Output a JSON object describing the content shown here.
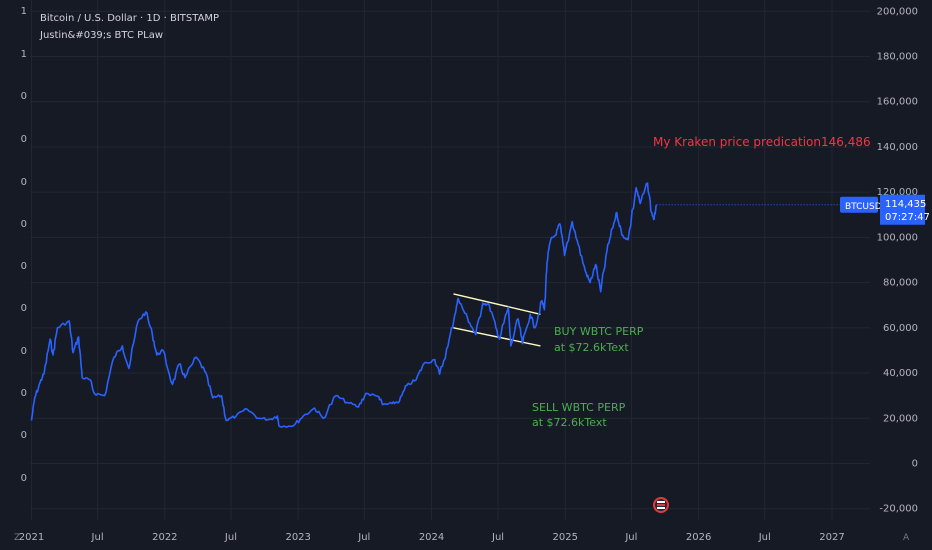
{
  "header": {
    "symbol_title": "Bitcoin / U.S. Dollar · 1D · BITSTAMP",
    "indicator_title": "Justin&#039;s BTC PLaw"
  },
  "price_tag": {
    "symbol": "BTCUSD",
    "price": "114,435",
    "countdown": "07:27:47"
  },
  "annotations": {
    "kraken": "My Kraken price predication146,486",
    "buy_line1": "BUY WBTC PERP",
    "buy_line2": "at $72.6kText",
    "sell_line1": "SELL WBTC PERP",
    "sell_line2": "at $72.6kText"
  },
  "left_axis_labels": [
    "1",
    "1",
    "0",
    "0",
    "0",
    "0",
    "0",
    "0",
    "0",
    "0",
    "0",
    "0"
  ],
  "corner_labels": {
    "left": "Z",
    "right": "A"
  },
  "colors": {
    "background": "#161a25",
    "series": "#2962ff",
    "kraken_text": "#f23645",
    "buy_sell_text": "#4caf50",
    "channel": "#fff9c4",
    "price_tag": "#2962ff"
  },
  "chart_data": {
    "type": "line",
    "title": "Bitcoin / U.S. Dollar · 1D · BITSTAMP",
    "x_tick_labels": [
      "2021",
      "Jul",
      "2022",
      "Jul",
      "2023",
      "Jul",
      "2024",
      "Jul",
      "2025",
      "Jul",
      "2026",
      "Jul",
      "2027"
    ],
    "y_tick_labels": [
      "200,000",
      "180,000",
      "160,000",
      "140,000",
      "120,000",
      "100,000",
      "80,000",
      "60,000",
      "40,000",
      "20,000",
      "0",
      "-20,000"
    ],
    "ylim": [
      -25000,
      205000
    ],
    "xlim": [
      "2020-12-28",
      "2027-04-15"
    ],
    "grid": true,
    "series": [
      {
        "values": [
          [
            "2021-01-01",
            19000
          ],
          [
            "2021-01-10",
            29000
          ],
          [
            "2021-01-25",
            36000
          ],
          [
            "2021-02-05",
            40000
          ],
          [
            "2021-02-21",
            55000
          ],
          [
            "2021-03-01",
            48000
          ],
          [
            "2021-03-13",
            60000
          ],
          [
            "2021-04-14",
            63000
          ],
          [
            "2021-04-25",
            49000
          ],
          [
            "2021-05-10",
            56000
          ],
          [
            "2021-05-20",
            38000
          ],
          [
            "2021-06-10",
            37000
          ],
          [
            "2021-06-22",
            31000
          ],
          [
            "2021-07-20",
            30000
          ],
          [
            "2021-08-15",
            47000
          ],
          [
            "2021-09-07",
            52000
          ],
          [
            "2021-09-25",
            42000
          ],
          [
            "2021-10-20",
            63000
          ],
          [
            "2021-11-10",
            67000
          ],
          [
            "2021-11-28",
            57000
          ],
          [
            "2021-12-10",
            48000
          ],
          [
            "2021-12-27",
            50000
          ],
          [
            "2022-01-22",
            35000
          ],
          [
            "2022-02-10",
            44000
          ],
          [
            "2022-02-25",
            38000
          ],
          [
            "2022-03-28",
            47000
          ],
          [
            "2022-04-20",
            41000
          ],
          [
            "2022-05-12",
            29000
          ],
          [
            "2022-06-05",
            30000
          ],
          [
            "2022-06-18",
            19000
          ],
          [
            "2022-07-15",
            21000
          ],
          [
            "2022-08-14",
            24000
          ],
          [
            "2022-09-15",
            20000
          ],
          [
            "2022-10-15",
            19500
          ],
          [
            "2022-11-05",
            21000
          ],
          [
            "2022-11-10",
            16500
          ],
          [
            "2022-12-20",
            16800
          ],
          [
            "2023-01-15",
            21000
          ],
          [
            "2023-02-15",
            24500
          ],
          [
            "2023-03-10",
            20000
          ],
          [
            "2023-04-14",
            30000
          ],
          [
            "2023-05-15",
            27000
          ],
          [
            "2023-06-15",
            25000
          ],
          [
            "2023-07-05",
            31000
          ],
          [
            "2023-08-10",
            29500
          ],
          [
            "2023-08-20",
            26000
          ],
          [
            "2023-09-15",
            26500
          ],
          [
            "2023-10-05",
            27500
          ],
          [
            "2023-10-25",
            34500
          ],
          [
            "2023-11-20",
            37000
          ],
          [
            "2023-12-10",
            44000
          ],
          [
            "2024-01-10",
            46000
          ],
          [
            "2024-01-23",
            39500
          ],
          [
            "2024-02-15",
            52000
          ],
          [
            "2024-03-05",
            66000
          ],
          [
            "2024-03-14",
            73000
          ],
          [
            "2024-03-25",
            69000
          ],
          [
            "2024-04-15",
            62000
          ],
          [
            "2024-05-01",
            57000
          ],
          [
            "2024-05-20",
            71000
          ],
          [
            "2024-06-07",
            70000
          ],
          [
            "2024-06-25",
            60000
          ],
          [
            "2024-07-05",
            55000
          ],
          [
            "2024-07-29",
            69000
          ],
          [
            "2024-08-05",
            52000
          ],
          [
            "2024-08-25",
            64000
          ],
          [
            "2024-09-06",
            53000
          ],
          [
            "2024-09-27",
            66000
          ],
          [
            "2024-10-10",
            60000
          ],
          [
            "2024-10-29",
            72000
          ],
          [
            "2024-11-05",
            68000
          ],
          [
            "2024-11-12",
            89000
          ],
          [
            "2024-11-22",
            99000
          ],
          [
            "2024-12-05",
            101000
          ],
          [
            "2024-12-17",
            106000
          ],
          [
            "2024-12-30",
            92000
          ],
          [
            "2025-01-20",
            107000
          ],
          [
            "2025-02-05",
            97000
          ],
          [
            "2025-02-25",
            85000
          ],
          [
            "2025-03-10",
            80000
          ],
          [
            "2025-03-25",
            88000
          ],
          [
            "2025-04-08",
            76000
          ],
          [
            "2025-04-25",
            94000
          ],
          [
            "2025-05-10",
            104000
          ],
          [
            "2025-05-22",
            111000
          ],
          [
            "2025-06-05",
            101000
          ],
          [
            "2025-06-22",
            99000
          ],
          [
            "2025-07-14",
            122000
          ],
          [
            "2025-07-25",
            115000
          ],
          [
            "2025-08-14",
            124000
          ],
          [
            "2025-08-25",
            111000
          ],
          [
            "2025-09-01",
            108000
          ],
          [
            "2025-09-05",
            112000
          ],
          [
            "2025-09-08",
            114435
          ]
        ]
      }
    ],
    "channel_lines": [
      {
        "from": [
          "2024-03-01",
          75000
        ],
        "to": [
          "2024-10-25",
          66000
        ]
      },
      {
        "from": [
          "2024-03-01",
          60000
        ],
        "to": [
          "2024-10-25",
          52000
        ]
      }
    ]
  }
}
